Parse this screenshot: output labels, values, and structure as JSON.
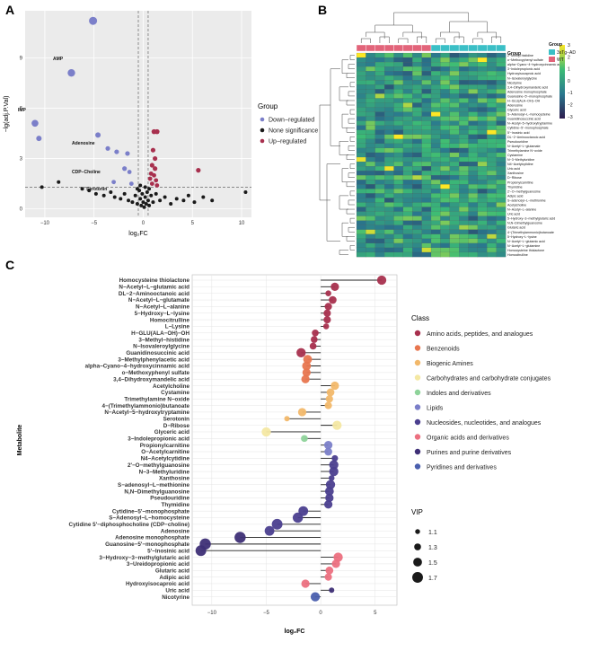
{
  "panels": {
    "a": {
      "letter": "A",
      "xlabel": "log₂FC",
      "ylabel": "−lg(adj.P.Val)",
      "legend_title": "Group",
      "legend": [
        {
          "label": "Down−regulated",
          "color": "#7b7fc9"
        },
        {
          "label": "None significance",
          "color": "#1a1a1a"
        },
        {
          "label": "Up−regulated",
          "color": "#a8304e"
        }
      ],
      "annotations": [
        "AMP",
        "IMP",
        "Adenosine",
        "CDP−Choline",
        "Serotonin"
      ]
    },
    "b": {
      "letter": "B",
      "col_annot_title": "Group",
      "legend_title": "Group",
      "groups": [
        {
          "label": "3xTg−AD",
          "color": "#3bbfc6"
        },
        {
          "label": "WT",
          "color": "#e2647a"
        }
      ],
      "scale_ticks": [
        "3",
        "2",
        "1",
        "0",
        "−1",
        "−2",
        "−3"
      ],
      "row_labels": [
        "2−Methyl histidine",
        "o−Methoxyphenyl sulfate",
        "alpha−Cyano−4−hydroxycinnamic acid",
        "3−Indolepropionic acid",
        "Hydroxyisocaproic acid",
        "N−Isovaleroylglycine",
        "Nicotyrine",
        "3,4−Dihydroxymandelic acid",
        "Adenosine monophosphate",
        "Guanosine−5'−monophosphate",
        "H−GLU(ALA−OH)−OH",
        "Adenosine",
        "Glyceric acid",
        "S−Adenosyl−L−homocysteine",
        "Guanidinosuccinic acid",
        "N−Acetyl−5−hydroxytryptamine",
        "Cytidine−5'−monophosphate",
        "5'−Inosinic acid",
        "DL−2−Aminooctanoic acid",
        "Pseudouridine",
        "N−Acetyl−L−glutamate",
        "Trimethylamine N−oxide",
        "Cystamine",
        "N−3−Methyluridine",
        "N4−Acetylcytidine",
        "Uric acid",
        "Xanthosine",
        "D−Ribose",
        "Propionylcarnitine",
        "Thymidine",
        "2'−O−methylguanosine",
        "Adipic acid",
        "S−adenosyl−L−methionine",
        "Acetylcholine",
        "N−Acetyl−L−alanine",
        "Uric acid",
        "5−Hydroxy−3−methylglutaric acid",
        "N,N−Dimethylguanosine",
        "Glutaric acid",
        "4−(Trimethylammonio)butanoate",
        "5−Hydroxy−L−lysine",
        "N−Acetyl−L−glutamic acid",
        "N−Acetyl−L−glutamine",
        "Homocysteine thiolactone",
        "Homocitrulline"
      ]
    },
    "c": {
      "letter": "C",
      "xlabel": "log₂FC",
      "ylabel": "Metabolite",
      "class_title": "Class",
      "vip_title": "VIP",
      "vip_sizes": [
        "1.1",
        "1.3",
        "1.5",
        "1.7"
      ]
    }
  },
  "chart_data": [
    {
      "type": "scatter",
      "xlim": [
        -12,
        11
      ],
      "ylim": [
        -0.5,
        11.8
      ],
      "x_ticks": [
        -10,
        -5,
        0,
        5,
        10
      ],
      "y_ticks": [
        0,
        3,
        6,
        9
      ],
      "thresholds": {
        "x": [
          -0.5,
          0.5
        ],
        "y": 1.3
      },
      "points": [
        {
          "x": -5.1,
          "y": 11.2,
          "g": "down",
          "s": 4.5
        },
        {
          "x": -7.3,
          "y": 8.1,
          "g": "down",
          "s": 4.2
        },
        {
          "x": -11.0,
          "y": 5.1,
          "g": "down",
          "s": 3.8
        },
        {
          "x": -10.6,
          "y": 4.2,
          "g": "down",
          "s": 3
        },
        {
          "x": -4.6,
          "y": 4.4,
          "g": "down",
          "s": 3
        },
        {
          "x": -3.6,
          "y": 3.6,
          "g": "down",
          "s": 2.6
        },
        {
          "x": -2.7,
          "y": 3.4,
          "g": "down",
          "s": 2.6
        },
        {
          "x": -1.6,
          "y": 3.3,
          "g": "down",
          "s": 2.6
        },
        {
          "x": -1.9,
          "y": 2.4,
          "g": "down",
          "s": 2.6
        },
        {
          "x": -1.4,
          "y": 2.2,
          "g": "down",
          "s": 2.4
        },
        {
          "x": -3.0,
          "y": 1.6,
          "g": "down",
          "s": 2.4
        },
        {
          "x": -1.2,
          "y": 1.5,
          "g": "down",
          "s": 2.4
        },
        {
          "x": 1.1,
          "y": 4.6,
          "g": "up",
          "s": 2.8
        },
        {
          "x": 1.4,
          "y": 4.6,
          "g": "up",
          "s": 2.8
        },
        {
          "x": 1.0,
          "y": 3.5,
          "g": "up",
          "s": 2.6
        },
        {
          "x": 1.2,
          "y": 3.0,
          "g": "up",
          "s": 2.6
        },
        {
          "x": 0.9,
          "y": 2.6,
          "g": "up",
          "s": 2.6
        },
        {
          "x": 1.2,
          "y": 2.4,
          "g": "up",
          "s": 2.6
        },
        {
          "x": 0.8,
          "y": 2.1,
          "g": "up",
          "s": 2.4
        },
        {
          "x": 1.1,
          "y": 2.0,
          "g": "up",
          "s": 2.4
        },
        {
          "x": 0.7,
          "y": 1.8,
          "g": "up",
          "s": 2.4
        },
        {
          "x": 1.3,
          "y": 1.7,
          "g": "up",
          "s": 2.4
        },
        {
          "x": 0.9,
          "y": 1.5,
          "g": "up",
          "s": 2.4
        },
        {
          "x": 1.4,
          "y": 1.4,
          "g": "up",
          "s": 2.4
        },
        {
          "x": 5.6,
          "y": 2.3,
          "g": "up",
          "s": 2.6
        },
        {
          "x": -8.6,
          "y": 1.6,
          "g": "none",
          "s": 2
        },
        {
          "x": -10.3,
          "y": 1.3,
          "g": "none",
          "s": 2
        },
        {
          "x": -6.2,
          "y": 1.2,
          "g": "none",
          "s": 2
        },
        {
          "x": -5.5,
          "y": 1.1,
          "g": "none",
          "s": 2
        },
        {
          "x": -4.8,
          "y": 0.9,
          "g": "none",
          "s": 2
        },
        {
          "x": -4.0,
          "y": 0.8,
          "g": "none",
          "s": 2
        },
        {
          "x": -3.3,
          "y": 1.0,
          "g": "none",
          "s": 2
        },
        {
          "x": -2.9,
          "y": 0.7,
          "g": "none",
          "s": 2
        },
        {
          "x": -2.3,
          "y": 0.6,
          "g": "none",
          "s": 2
        },
        {
          "x": -1.9,
          "y": 0.9,
          "g": "none",
          "s": 2
        },
        {
          "x": -1.5,
          "y": 0.5,
          "g": "none",
          "s": 2
        },
        {
          "x": -1.1,
          "y": 0.4,
          "g": "none",
          "s": 2
        },
        {
          "x": -0.8,
          "y": 0.8,
          "g": "none",
          "s": 2
        },
        {
          "x": -0.6,
          "y": 0.3,
          "g": "none",
          "s": 2
        },
        {
          "x": -0.4,
          "y": 1.1,
          "g": "none",
          "s": 2
        },
        {
          "x": -0.3,
          "y": 0.6,
          "g": "none",
          "s": 2
        },
        {
          "x": -0.2,
          "y": 0.2,
          "g": "none",
          "s": 2
        },
        {
          "x": -0.1,
          "y": 0.9,
          "g": "none",
          "s": 2
        },
        {
          "x": 0.0,
          "y": 0.4,
          "g": "none",
          "s": 2
        },
        {
          "x": 0.1,
          "y": 0.1,
          "g": "none",
          "s": 2
        },
        {
          "x": 0.2,
          "y": 0.7,
          "g": "none",
          "s": 2
        },
        {
          "x": 0.3,
          "y": 0.3,
          "g": "none",
          "s": 2
        },
        {
          "x": 0.4,
          "y": 1.0,
          "g": "none",
          "s": 2
        },
        {
          "x": 0.5,
          "y": 0.5,
          "g": "none",
          "s": 2
        },
        {
          "x": 0.6,
          "y": 0.2,
          "g": "none",
          "s": 2
        },
        {
          "x": 0.8,
          "y": 0.8,
          "g": "none",
          "s": 2
        },
        {
          "x": 1.0,
          "y": 0.4,
          "g": "none",
          "s": 2
        },
        {
          "x": 1.3,
          "y": 0.9,
          "g": "none",
          "s": 2
        },
        {
          "x": 1.7,
          "y": 0.5,
          "g": "none",
          "s": 2
        },
        {
          "x": 2.2,
          "y": 0.7,
          "g": "none",
          "s": 2
        },
        {
          "x": 2.8,
          "y": 0.3,
          "g": "none",
          "s": 2
        },
        {
          "x": 3.4,
          "y": 0.6,
          "g": "none",
          "s": 2
        },
        {
          "x": 4.1,
          "y": 0.5,
          "g": "none",
          "s": 2
        },
        {
          "x": 4.6,
          "y": 0.8,
          "g": "none",
          "s": 2
        },
        {
          "x": 5.2,
          "y": 0.4,
          "g": "none",
          "s": 2
        },
        {
          "x": 6.1,
          "y": 0.7,
          "g": "none",
          "s": 2
        },
        {
          "x": 7.0,
          "y": 0.5,
          "g": "none",
          "s": 2
        },
        {
          "x": 10.4,
          "y": 1.0,
          "g": "none",
          "s": 2
        },
        {
          "x": -0.3,
          "y": 1.4,
          "g": "none",
          "s": 2
        },
        {
          "x": 0.2,
          "y": 1.3,
          "g": "none",
          "s": 2
        },
        {
          "x": -0.6,
          "y": 1.2,
          "g": "none",
          "s": 2
        },
        {
          "x": 0.6,
          "y": 1.2,
          "g": "none",
          "s": 2
        }
      ]
    },
    {
      "type": "heatmap",
      "n_rows": 45,
      "n_cols": 16,
      "group_per_col": [
        "WT",
        "WT",
        "WT",
        "WT",
        "WT",
        "WT",
        "WT",
        "WT",
        "3xTg−AD",
        "3xTg−AD",
        "3xTg−AD",
        "3xTg−AD",
        "3xTg−AD",
        "3xTg−AD",
        "3xTg−AD",
        "3xTg−AD"
      ],
      "value_range": [
        -3,
        3
      ],
      "colors": [
        "#2d1c4e",
        "#2a788e",
        "#3cbc75",
        "#fde725"
      ]
    },
    {
      "type": "lollipop",
      "xlim": [
        -11.8,
        7
      ],
      "x_ticks": [
        -10,
        -5,
        0,
        5
      ],
      "vip_range": [
        1.0,
        1.8
      ],
      "classes": [
        {
          "name": "Amino acids, peptides, and analogues",
          "color": "#a8304e"
        },
        {
          "name": "Benzenoids",
          "color": "#e8764f"
        },
        {
          "name": "Biogenic Amines",
          "color": "#f2b86a"
        },
        {
          "name": "Carbohydrates and carbohydrate conjugates",
          "color": "#f4e8a3"
        },
        {
          "name": "Indoles and derivatives",
          "color": "#8ed39a"
        },
        {
          "name": "Lipids",
          "color": "#7b7fc9"
        },
        {
          "name": "Nucleosides, nucleotides, and analogues",
          "color": "#4b3f8f"
        },
        {
          "name": "Organic acids and derivatives",
          "color": "#ec7080"
        },
        {
          "name": "Purines and purine derivatives",
          "color": "#3e2f76"
        },
        {
          "name": "Pyridines and derivatives",
          "color": "#4a5fae"
        }
      ],
      "metabolites": [
        {
          "name": "Homocysteine thiolactone",
          "fc": 5.6,
          "vip": 1.55,
          "cls": 0
        },
        {
          "name": "N−Acetyl−L−glutamic acid",
          "fc": 1.3,
          "vip": 1.45,
          "cls": 0
        },
        {
          "name": "DL−2−Aminooctanoic acid",
          "fc": 0.7,
          "vip": 1.2,
          "cls": 0
        },
        {
          "name": "N−Acetyl−L−glutamate",
          "fc": 1.1,
          "vip": 1.4,
          "cls": 0
        },
        {
          "name": "N−Acetyl−L−alanine",
          "fc": 0.7,
          "vip": 1.35,
          "cls": 0
        },
        {
          "name": "5−Hydroxy−L−lysine",
          "fc": 0.6,
          "vip": 1.35,
          "cls": 0
        },
        {
          "name": "Homocitrulline",
          "fc": 0.6,
          "vip": 1.35,
          "cls": 0
        },
        {
          "name": "L−Lysine",
          "fc": 0.5,
          "vip": 1.2,
          "cls": 0
        },
        {
          "name": "H−GLU(ALA−OH)−OH",
          "fc": -0.5,
          "vip": 1.3,
          "cls": 0
        },
        {
          "name": "3−Methyl−histidine",
          "fc": -0.6,
          "vip": 1.3,
          "cls": 0
        },
        {
          "name": "N−Isovaleroylglycine",
          "fc": -0.7,
          "vip": 1.3,
          "cls": 0
        },
        {
          "name": "Guanidinosuccinic acid",
          "fc": -1.8,
          "vip": 1.55,
          "cls": 0
        },
        {
          "name": "3−Methylphenylacetic acid",
          "fc": -1.2,
          "vip": 1.5,
          "cls": 1
        },
        {
          "name": "alpha−Cyano−4−hydroxycinnamic acid",
          "fc": -1.3,
          "vip": 1.5,
          "cls": 1
        },
        {
          "name": "o−Methoxyphenyl sulfate",
          "fc": -1.3,
          "vip": 1.45,
          "cls": 1
        },
        {
          "name": "3,4−Dihydroxymandelic acid",
          "fc": -1.4,
          "vip": 1.45,
          "cls": 1
        },
        {
          "name": "Acetylcholine",
          "fc": 1.3,
          "vip": 1.45,
          "cls": 2
        },
        {
          "name": "Cystamine",
          "fc": 0.9,
          "vip": 1.4,
          "cls": 2
        },
        {
          "name": "Trimethylamine N−oxide",
          "fc": 0.8,
          "vip": 1.35,
          "cls": 2
        },
        {
          "name": "4−(Trimethylammonio)butanoate",
          "fc": 0.7,
          "vip": 1.35,
          "cls": 2
        },
        {
          "name": "N−Acetyl−5−hydroxytryptamine",
          "fc": -1.7,
          "vip": 1.45,
          "cls": 2
        },
        {
          "name": "Serotonin",
          "fc": -3.1,
          "vip": 1.15,
          "cls": 2
        },
        {
          "name": "D−Ribose",
          "fc": 1.5,
          "vip": 1.55,
          "cls": 3
        },
        {
          "name": "Glyceric acid",
          "fc": -5.0,
          "vip": 1.55,
          "cls": 3
        },
        {
          "name": "3−Indolepropionic acid",
          "fc": -1.5,
          "vip": 1.3,
          "cls": 4
        },
        {
          "name": "Propionylcarnitine",
          "fc": 0.7,
          "vip": 1.45,
          "cls": 5
        },
        {
          "name": "O−Acetylcarnitine",
          "fc": 0.7,
          "vip": 1.4,
          "cls": 5
        },
        {
          "name": "N4−Acetylcytidine",
          "fc": 1.3,
          "vip": 1.25,
          "cls": 6
        },
        {
          "name": "2'−O−methylguanosine",
          "fc": 1.2,
          "vip": 1.55,
          "cls": 6
        },
        {
          "name": "N−3−Methyluridine",
          "fc": 1.2,
          "vip": 1.55,
          "cls": 6
        },
        {
          "name": "Xanthosine",
          "fc": 1.0,
          "vip": 1.2,
          "cls": 6
        },
        {
          "name": "S−adenosyl−L−methionine",
          "fc": 0.9,
          "vip": 1.55,
          "cls": 6
        },
        {
          "name": "N,N−Dimethylguanosine",
          "fc": 0.8,
          "vip": 1.5,
          "cls": 6
        },
        {
          "name": "Pseudouridine",
          "fc": 0.8,
          "vip": 1.45,
          "cls": 6
        },
        {
          "name": "Thymidine",
          "fc": 0.7,
          "vip": 1.45,
          "cls": 6
        },
        {
          "name": "Cytidine−5'−monophosphate",
          "fc": -1.6,
          "vip": 1.6,
          "cls": 6
        },
        {
          "name": "S−Adenosyl−L−homocysteine",
          "fc": -2.1,
          "vip": 1.65,
          "cls": 6
        },
        {
          "name": "Cytidine 5'−diphosphocholine (CDP−choline)",
          "fc": -4.0,
          "vip": 1.7,
          "cls": 6
        },
        {
          "name": "Adenosine",
          "fc": -4.7,
          "vip": 1.6,
          "cls": 6
        },
        {
          "name": "Adenosine monophosphate",
          "fc": -7.4,
          "vip": 1.75,
          "cls": 8
        },
        {
          "name": "Guanosine−5'−monophosphate",
          "fc": -10.6,
          "vip": 1.75,
          "cls": 8
        },
        {
          "name": "5'−Inosinic acid",
          "fc": -11.0,
          "vip": 1.7,
          "cls": 8
        },
        {
          "name": "3−Hydroxy−3−methylglutaric acid",
          "fc": 1.6,
          "vip": 1.55,
          "cls": 7
        },
        {
          "name": "3−Ureidopropionic acid",
          "fc": 1.4,
          "vip": 1.45,
          "cls": 7
        },
        {
          "name": "Glutaric acid",
          "fc": 0.8,
          "vip": 1.4,
          "cls": 7
        },
        {
          "name": "Adipic acid",
          "fc": 0.7,
          "vip": 1.35,
          "cls": 7
        },
        {
          "name": "Hydroxyisocaproic acid",
          "fc": -1.4,
          "vip": 1.45,
          "cls": 7
        },
        {
          "name": "Uric acid",
          "fc": 1.0,
          "vip": 1.15,
          "cls": 8
        },
        {
          "name": "Nicotyrine",
          "fc": -0.5,
          "vip": 1.55,
          "cls": 9
        }
      ]
    }
  ]
}
